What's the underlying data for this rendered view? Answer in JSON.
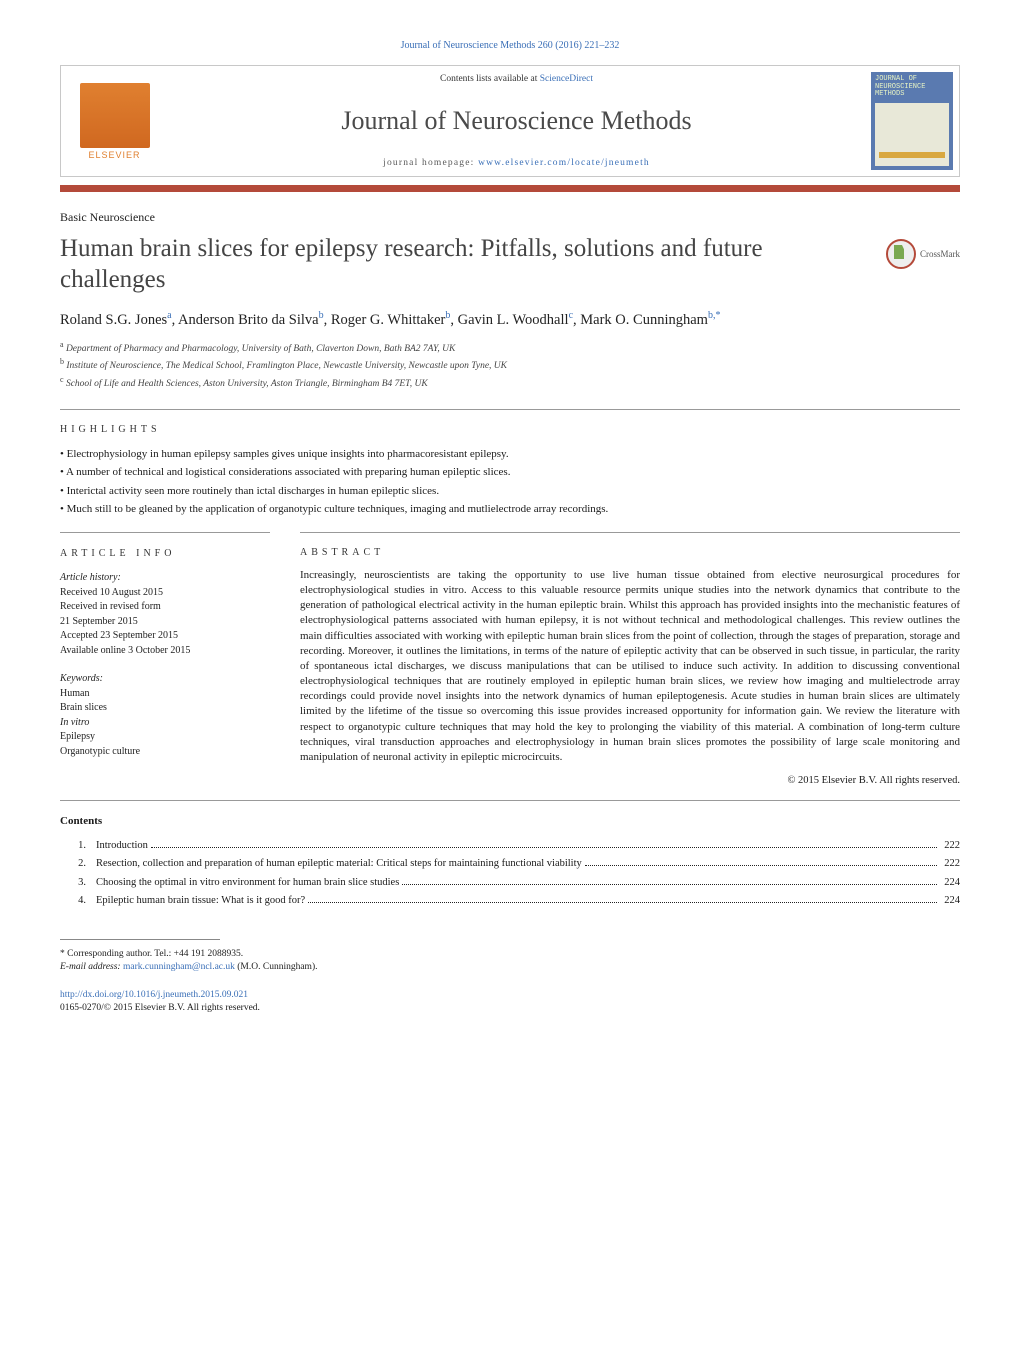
{
  "topLink": "Journal of Neuroscience Methods 260 (2016) 221–232",
  "header": {
    "contentsLine_prefix": "Contents lists available at ",
    "contentsLine_link": "ScienceDirect",
    "journalName": "Journal of Neuroscience Methods",
    "homepage_prefix": "journal homepage: ",
    "homepage_link": "www.elsevier.com/locate/jneumeth",
    "elsevier": "ELSEVIER",
    "coverLabel1": "JOURNAL OF",
    "coverLabel2": "NEUROSCIENCE",
    "coverLabel3": "METHODS"
  },
  "sectionLabel": "Basic Neuroscience",
  "title": "Human brain slices for epilepsy research: Pitfalls, solutions and future challenges",
  "crossmark": "CrossMark",
  "authorsHtmlParts": {
    "a1": "Roland S.G. Jones",
    "s1": "a",
    "a2": ", Anderson Brito da Silva",
    "s2": "b",
    "a3": ", Roger G. Whittaker",
    "s3": "b",
    "a4": ", Gavin L. Woodhall",
    "s4": "c",
    "a5": ", Mark O. Cunningham",
    "s5": "b,",
    "star": "*"
  },
  "affiliations": {
    "a": "Department of Pharmacy and Pharmacology, University of Bath, Claverton Down, Bath BA2 7AY, UK",
    "b": "Institute of Neuroscience, The Medical School, Framlington Place, Newcastle University, Newcastle upon Tyne, UK",
    "c": "School of Life and Health Sciences, Aston University, Aston Triangle, Birmingham B4 7ET, UK"
  },
  "highlights": {
    "title": "HIGHLIGHTS",
    "items": [
      "Electrophysiology in human epilepsy samples gives unique insights into pharmacoresistant epilepsy.",
      "A number of technical and logistical considerations associated with preparing human epileptic slices.",
      "Interictal activity seen more routinely than ictal discharges in human epileptic slices.",
      "Much still to be gleaned by the application of organotypic culture techniques, imaging and mutlielectrode array recordings."
    ]
  },
  "info": {
    "title": "ARTICLE INFO",
    "historyLabel": "Article history:",
    "history": [
      "Received 10 August 2015",
      "Received in revised form",
      "21 September 2015",
      "Accepted 23 September 2015",
      "Available online 3 October 2015"
    ],
    "keywordsLabel": "Keywords:",
    "keywords": [
      "Human",
      "Brain slices",
      "In vitro",
      "Epilepsy",
      "Organotypic culture"
    ]
  },
  "abstract": {
    "title": "ABSTRACT",
    "text": "Increasingly, neuroscientists are taking the opportunity to use live human tissue obtained from elective neurosurgical procedures for electrophysiological studies in vitro. Access to this valuable resource permits unique studies into the network dynamics that contribute to the generation of pathological electrical activity in the human epileptic brain. Whilst this approach has provided insights into the mechanistic features of electrophysiological patterns associated with human epilepsy, it is not without technical and methodological challenges. This review outlines the main difficulties associated with working with epileptic human brain slices from the point of collection, through the stages of preparation, storage and recording. Moreover, it outlines the limitations, in terms of the nature of epileptic activity that can be observed in such tissue, in particular, the rarity of spontaneous ictal discharges, we discuss manipulations that can be utilised to induce such activity. In addition to discussing conventional electrophysiological techniques that are routinely employed in epileptic human brain slices, we review how imaging and multielectrode array recordings could provide novel insights into the network dynamics of human epileptogenesis. Acute studies in human brain slices are ultimately limited by the lifetime of the tissue so overcoming this issue provides increased opportunity for information gain. We review the literature with respect to organotypic culture techniques that may hold the key to prolonging the viability of this material. A combination of long-term culture techniques, viral transduction approaches and electrophysiology in human brain slices promotes the possibility of large scale monitoring and manipulation of neuronal activity in epileptic microcircuits.",
    "copyright": "© 2015 Elsevier B.V. All rights reserved."
  },
  "contents": {
    "heading": "Contents",
    "items": [
      {
        "num": "1.",
        "text": "Introduction",
        "page": "222"
      },
      {
        "num": "2.",
        "text": "Resection, collection and preparation of human epileptic material: Critical steps for maintaining functional viability",
        "page": "222"
      },
      {
        "num": "3.",
        "text": "Choosing the optimal in vitro environment for human brain slice studies",
        "page": "224"
      },
      {
        "num": "4.",
        "text": "Epileptic human brain tissue: What is it good for?",
        "page": "224"
      }
    ]
  },
  "footnote": {
    "corr": "* Corresponding author. Tel.: +44 191 2088935.",
    "emailLabel": "E-mail address: ",
    "email": "mark.cunningham@ncl.ac.uk",
    "emailSuffix": " (M.O. Cunningham)."
  },
  "footer": {
    "doi": "http://dx.doi.org/10.1016/j.jneumeth.2015.09.021",
    "issn": "0165-0270/© 2015 Elsevier B.V. All rights reserved."
  },
  "colors": {
    "link": "#3a6fb7",
    "divider": "#b44a3a",
    "elsevier": "#e08030",
    "coverBg": "#5a7ab0",
    "coverText": "#e8f4c4"
  }
}
